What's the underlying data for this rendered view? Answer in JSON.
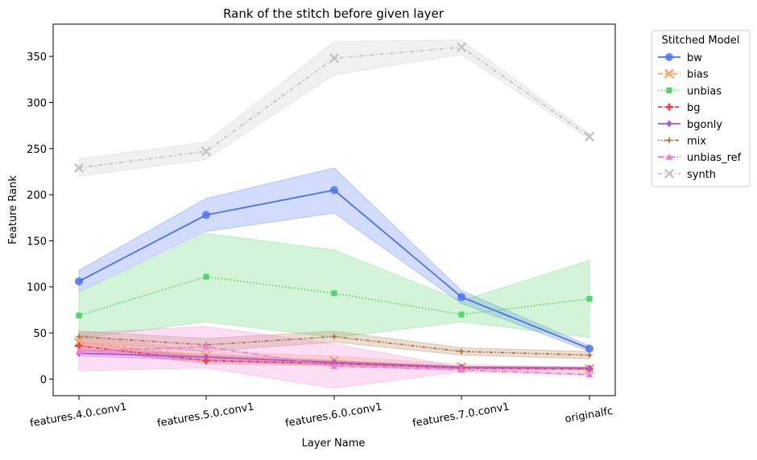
{
  "chart_data": {
    "type": "line",
    "title": "Rank of the stitch before given layer",
    "xlabel": "Layer Name",
    "ylabel": "Feature Rank",
    "categories": [
      "features.4.0.conv1",
      "features.5.0.conv1",
      "features.6.0.conv1",
      "features.7.0.conv1",
      "originalfc"
    ],
    "ylim": [
      -18,
      385
    ],
    "yticks": [
      0,
      50,
      100,
      150,
      200,
      250,
      300,
      350
    ],
    "grid": false,
    "legend": {
      "title": "Stitched Model",
      "placement": "outside-right"
    },
    "series": [
      {
        "name": "bw",
        "color": "#4c72f0",
        "dash": "",
        "marker": "circle",
        "values": [
          106,
          178,
          205,
          89,
          33
        ],
        "band_low": [
          95,
          160,
          180,
          82,
          30
        ],
        "band_high": [
          118,
          196,
          229,
          96,
          36
        ]
      },
      {
        "name": "bias",
        "color": "#f5a86a",
        "dash": "6,3",
        "marker": "x",
        "values": [
          40,
          25,
          20,
          13,
          11
        ],
        "band_low": [
          30,
          20,
          14,
          10,
          9
        ],
        "band_high": [
          48,
          30,
          25,
          16,
          13
        ]
      },
      {
        "name": "unbias",
        "color": "#55d66a",
        "dash": "1.5,2.5",
        "marker": "square",
        "values": [
          69,
          111,
          93,
          70,
          87
        ],
        "band_low": [
          44,
          62,
          45,
          62,
          45
        ],
        "band_high": [
          94,
          158,
          140,
          85,
          129
        ]
      },
      {
        "name": "bg",
        "color": "#e8414f",
        "dash": "5,2,1.5,2",
        "marker": "plus",
        "values": [
          36,
          20,
          17,
          12,
          11
        ],
        "band_low": [
          32,
          17,
          15,
          11,
          10
        ],
        "band_high": [
          40,
          23,
          20,
          13,
          12
        ]
      },
      {
        "name": "bgonly",
        "color": "#a958e0",
        "dash": "",
        "marker": "diamond",
        "values": [
          28,
          24,
          18,
          13,
          12
        ],
        "band_low": [
          25,
          20,
          16,
          12,
          11
        ],
        "band_high": [
          32,
          27,
          20,
          14,
          13
        ]
      },
      {
        "name": "mix",
        "color": "#b07a4c",
        "dash": "1.5,2,1.5,2,5,2",
        "marker": "star",
        "values": [
          46,
          37,
          46,
          30,
          26
        ],
        "band_low": [
          40,
          30,
          40,
          26,
          22
        ],
        "band_high": [
          52,
          44,
          52,
          34,
          30
        ]
      },
      {
        "name": "unbias_ref",
        "color": "#ee7fd6",
        "dash": "8,2,1.5,2",
        "marker": "triangle",
        "values": [
          30,
          35,
          14,
          10,
          5
        ],
        "band_low": [
          9,
          12,
          -10,
          8,
          4
        ],
        "band_high": [
          50,
          57,
          38,
          13,
          7
        ]
      },
      {
        "name": "synth",
        "color": "#c5c5c5",
        "dash": "5,3,1.5,3",
        "marker": "x",
        "values": [
          229,
          247,
          348,
          360,
          263
        ],
        "band_low": [
          220,
          238,
          330,
          352,
          260
        ],
        "band_high": [
          239,
          257,
          366,
          368,
          266
        ]
      }
    ]
  }
}
